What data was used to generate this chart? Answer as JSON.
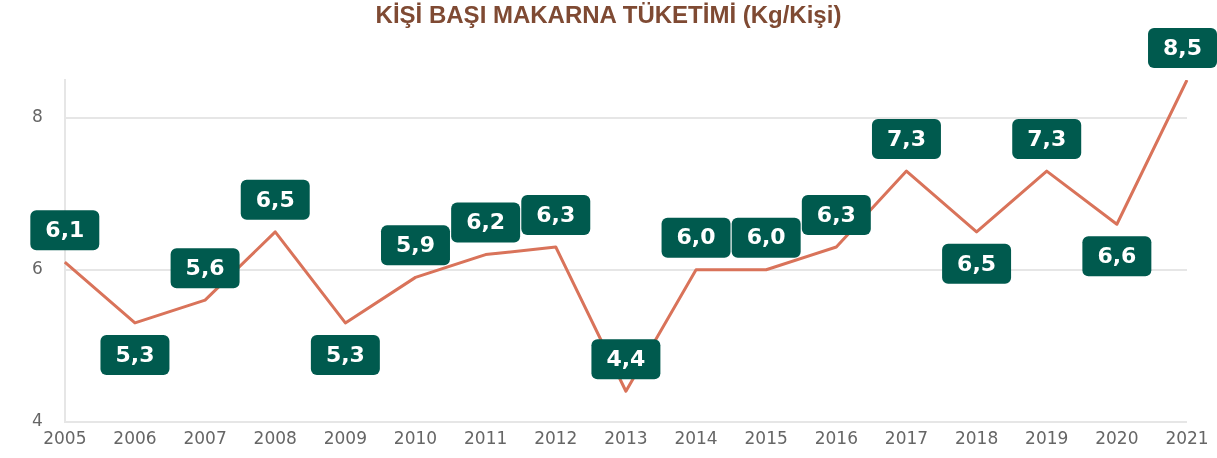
{
  "chart_data": {
    "type": "line",
    "title": "KİŞİ BAŞI MAKARNA TÜKETİMİ (Kg/Kişi)",
    "categories": [
      "2005",
      "2006",
      "2007",
      "2008",
      "2009",
      "2010",
      "2011",
      "2012",
      "2013",
      "2014",
      "2015",
      "2016",
      "2017",
      "2018",
      "2019",
      "2020",
      "2021"
    ],
    "series": [
      {
        "color": "#d9735a",
        "values": [
          6.1,
          5.3,
          5.6,
          6.5,
          5.3,
          5.9,
          6.2,
          6.3,
          4.4,
          6.0,
          6.0,
          6.3,
          7.3,
          6.5,
          7.3,
          6.6,
          8.5
        ],
        "value_labels": [
          "6,1",
          "5,3",
          "5,6",
          "6,5",
          "5,3",
          "5,9",
          "6,2",
          "6,3",
          "4,4",
          "6,0",
          "6,0",
          "6,3",
          "7,3",
          "6,5",
          "7,3",
          "6,6",
          "8,5"
        ]
      }
    ],
    "ylim": [
      4,
      8.5
    ],
    "yticks": [
      4,
      6,
      8
    ],
    "grid": "y",
    "legend": false,
    "marker": "none",
    "line_style": "solid"
  }
}
